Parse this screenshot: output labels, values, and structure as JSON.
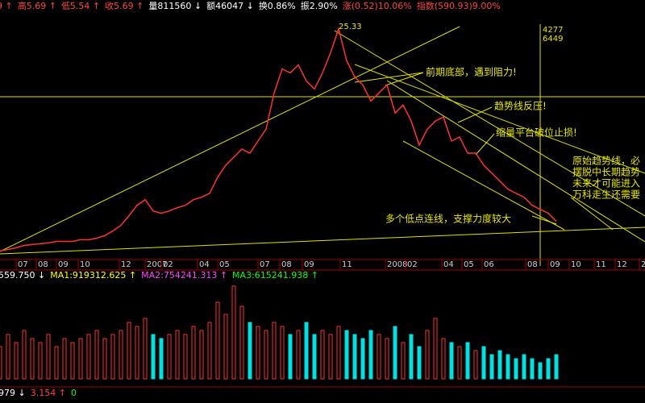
{
  "header": {
    "items": [
      {
        "text": "9 ↑",
        "color": "#ff4040"
      },
      {
        "text": "高5.69 ↑",
        "color": "#ff4040"
      },
      {
        "text": "低5.54 ↑",
        "color": "#ff4040"
      },
      {
        "text": "收5.69 ↑",
        "color": "#ff4040"
      },
      {
        "text": "量811560 ↓",
        "color": "#ffffff"
      },
      {
        "text": "额46047 ↓",
        "color": "#ffffff"
      },
      {
        "text": "换0.86%",
        "color": "#ffffff"
      },
      {
        "text": "振2.90%",
        "color": "#ffffff"
      },
      {
        "text": "涨(0.52)10.06%",
        "color": "#ff4040"
      },
      {
        "text": "指数(590.93)9.00%",
        "color": "#ff4040"
      }
    ]
  },
  "chart_data": [
    {
      "type": "line",
      "color": "#ff3030",
      "x": [
        0,
        1,
        2,
        3,
        4,
        5,
        6,
        7,
        8,
        9,
        10,
        11,
        12,
        13,
        14,
        15,
        16,
        17,
        18,
        19,
        20,
        21,
        22,
        23,
        24,
        25,
        26,
        27,
        28,
        29,
        30,
        31,
        32,
        33,
        34,
        35,
        36,
        37,
        38,
        39,
        40,
        41,
        42,
        43,
        44,
        45,
        46,
        47,
        48,
        49,
        50,
        51,
        52,
        53,
        54,
        55,
        56,
        57,
        58,
        59,
        60,
        61,
        62,
        63,
        64,
        65,
        66,
        67,
        68,
        69
      ],
      "values": [
        2.67,
        2.83,
        3.0,
        3.24,
        3.33,
        3.41,
        3.49,
        3.65,
        3.65,
        3.65,
        3.82,
        3.82,
        3.98,
        4.23,
        4.72,
        5.29,
        6.27,
        7.33,
        7.91,
        6.76,
        6.52,
        6.76,
        7.09,
        7.33,
        7.91,
        8.15,
        8.56,
        10.2,
        11.42,
        12.24,
        13.06,
        12.65,
        13.88,
        15.1,
        18.79,
        21.24,
        20.83,
        21.65,
        20.01,
        19.19,
        20.83,
        22.88,
        25.33,
        22.06,
        20.42,
        19.6,
        17.97,
        18.79,
        19.6,
        16.74,
        17.56,
        15.92,
        13.47,
        15.1,
        15.92,
        16.33,
        13.88,
        14.29,
        12.65,
        12.65,
        11.42,
        10.61,
        9.79,
        8.97,
        8.56,
        8.15,
        7.33,
        6.92,
        6.52,
        5.69
      ],
      "xlim": [
        0,
        80
      ],
      "xticks": [
        {
          "value": 2.0,
          "label": "07"
        },
        {
          "value": 4.5,
          "label": "08"
        },
        {
          "value": 7.0,
          "label": "09"
        },
        {
          "value": 9.7,
          "label": "10"
        },
        {
          "value": 14.8,
          "label": "12"
        },
        {
          "value": 18.0,
          "label": "2007"
        },
        {
          "value": 20.0,
          "label": "02"
        },
        {
          "value": 24.5,
          "label": "04"
        },
        {
          "value": 27.0,
          "label": "05"
        },
        {
          "value": 32.0,
          "label": "07"
        },
        {
          "value": 34.7,
          "label": "08"
        },
        {
          "value": 37.5,
          "label": "09"
        },
        {
          "value": 42.2,
          "label": "11"
        },
        {
          "value": 47.8,
          "label": "2008"
        },
        {
          "value": 50.3,
          "label": "02"
        },
        {
          "value": 54.8,
          "label": "04"
        },
        {
          "value": 57.3,
          "label": "05"
        },
        {
          "value": 59.8,
          "label": "06"
        },
        {
          "value": 65.2,
          "label": "08"
        },
        {
          "value": 68.0,
          "label": "09"
        },
        {
          "value": 70.6,
          "label": "10"
        },
        {
          "value": 73.7,
          "label": "11"
        },
        {
          "value": 76.3,
          "label": "12"
        },
        {
          "value": 79.3,
          "label": "20"
        }
      ],
      "ylim": [
        1.8,
        25.8
      ],
      "annotations": [
        "25.33",
        "前期底部，遇到阻力!",
        "趋势线反压!",
        "缩量平台破位止损!",
        "原始趋势线，必",
        "摆脱中长期趋势",
        "未来才可能进入",
        "万科走生还需要",
        "多个低点连线，支撑力度较大",
        "4277",
        "6449"
      ]
    },
    {
      "type": "bar",
      "up_color": "#ff3030",
      "down_color": "#00e0e0",
      "legend_items": [
        {
          "text": "559.750 ↓",
          "color": "#ffffff"
        },
        {
          "text": "MA1:919312.625 ↑",
          "color": "#ffff00"
        },
        {
          "text": "MA2:754241.313 ↑",
          "color": "#ff40ff"
        },
        {
          "text": "MA3:615241.938 ↑",
          "color": "#00ff00"
        }
      ],
      "x": [
        0,
        1,
        2,
        3,
        4,
        5,
        6,
        7,
        8,
        9,
        10,
        11,
        12,
        13,
        14,
        15,
        16,
        17,
        18,
        19,
        20,
        21,
        22,
        23,
        24,
        25,
        26,
        27,
        28,
        29,
        30,
        31,
        32,
        33,
        34,
        35,
        36,
        37,
        38,
        39,
        40,
        41,
        42,
        43,
        44,
        45,
        46,
        47,
        48,
        49,
        50,
        51,
        52,
        53,
        54,
        55,
        56,
        57,
        58,
        59,
        60,
        61,
        62,
        63,
        64,
        65,
        66,
        67,
        68,
        69
      ],
      "values": [
        640000,
        880000,
        720000,
        960000,
        800000,
        720000,
        880000,
        640000,
        800000,
        720000,
        800000,
        880000,
        960000,
        800000,
        880000,
        960000,
        1120000,
        1040000,
        1200000,
        880000,
        800000,
        880000,
        960000,
        880000,
        1040000,
        960000,
        1120000,
        1520000,
        1280000,
        1840000,
        1440000,
        1120000,
        1040000,
        960000,
        1120000,
        1040000,
        880000,
        960000,
        1120000,
        880000,
        960000,
        880000,
        1040000,
        960000,
        880000,
        800000,
        960000,
        880000,
        800000,
        1040000,
        720000,
        880000,
        640000,
        960000,
        1200000,
        800000,
        720000,
        640000,
        720000,
        560000,
        640000,
        480000,
        560000,
        480000,
        400000,
        480000,
        400000,
        320000,
        400000,
        480000
      ],
      "xlim": [
        0,
        80
      ],
      "ylim": [
        0,
        2000000
      ]
    }
  ],
  "footer": {
    "items": [
      {
        "text": "979 ↓",
        "color": "#ffffff"
      },
      {
        "text": "3.154 ↑",
        "color": "#ff4040"
      },
      {
        "text": "0",
        "color": "#00ff00"
      }
    ]
  }
}
